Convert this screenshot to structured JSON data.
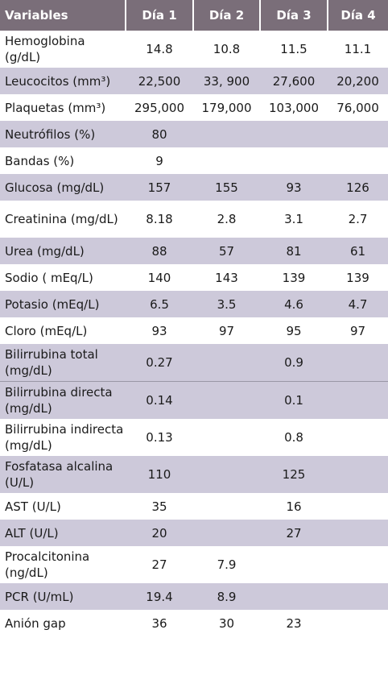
{
  "headers": [
    "Variables",
    "Día 1",
    "Día 2",
    "Día 3",
    "Día 4"
  ],
  "rows": [
    [
      "Hemoglobina (g/dL)",
      "14.8",
      "10.8",
      "11.5",
      "11.1"
    ],
    [
      "Leucocitos (mm³)",
      "22,500",
      "33, 900",
      "27,600",
      "20,200"
    ],
    [
      "Plaquetas (mm³)",
      "295,000",
      "179,000",
      "103,000",
      "76,000"
    ],
    [
      "Neutrófilos (%)",
      "80",
      "",
      "",
      ""
    ],
    [
      "Bandas (%)",
      "9",
      "",
      "",
      ""
    ],
    [
      "Glucosa (mg/dL)",
      "157",
      "155",
      "93",
      "126"
    ],
    [
      "Creatinina (mg/dL)",
      "8.18",
      "2.8",
      "3.1",
      "2.7"
    ],
    [
      "Urea (mg/dL)",
      "88",
      "57",
      "81",
      "61"
    ],
    [
      "Sodio ( mEq/L)",
      "140",
      "143",
      "139",
      "139"
    ],
    [
      "Potasio (mEq/L)",
      "6.5",
      "3.5",
      "4.6",
      "4.7"
    ],
    [
      "Cloro (mEq/L)",
      "93",
      "97",
      "95",
      "97"
    ],
    [
      "Bilirrubina total (mg/dL)",
      "0.27",
      "",
      "0.9",
      ""
    ],
    [
      "Bilirrubina directa (mg/dL)",
      "0.14",
      "",
      "0.1",
      ""
    ],
    [
      "Bilirrubina indirecta (mg/dL)",
      "0.13",
      "",
      "0.8",
      ""
    ],
    [
      "Fosfatasa alcalina (U/L)",
      "110",
      "",
      "125",
      ""
    ],
    [
      "AST (U/L)",
      "35",
      "",
      "16",
      ""
    ],
    [
      "ALT (U/L)",
      "20",
      "",
      "27",
      ""
    ],
    [
      "Procalcitonina (ng/dL)",
      "27",
      "7.9",
      "",
      ""
    ],
    [
      "PCR (U/mL)",
      "19.4",
      "8.9",
      "",
      ""
    ],
    [
      "Anión gap",
      "36",
      "30",
      "23",
      ""
    ]
  ]
}
